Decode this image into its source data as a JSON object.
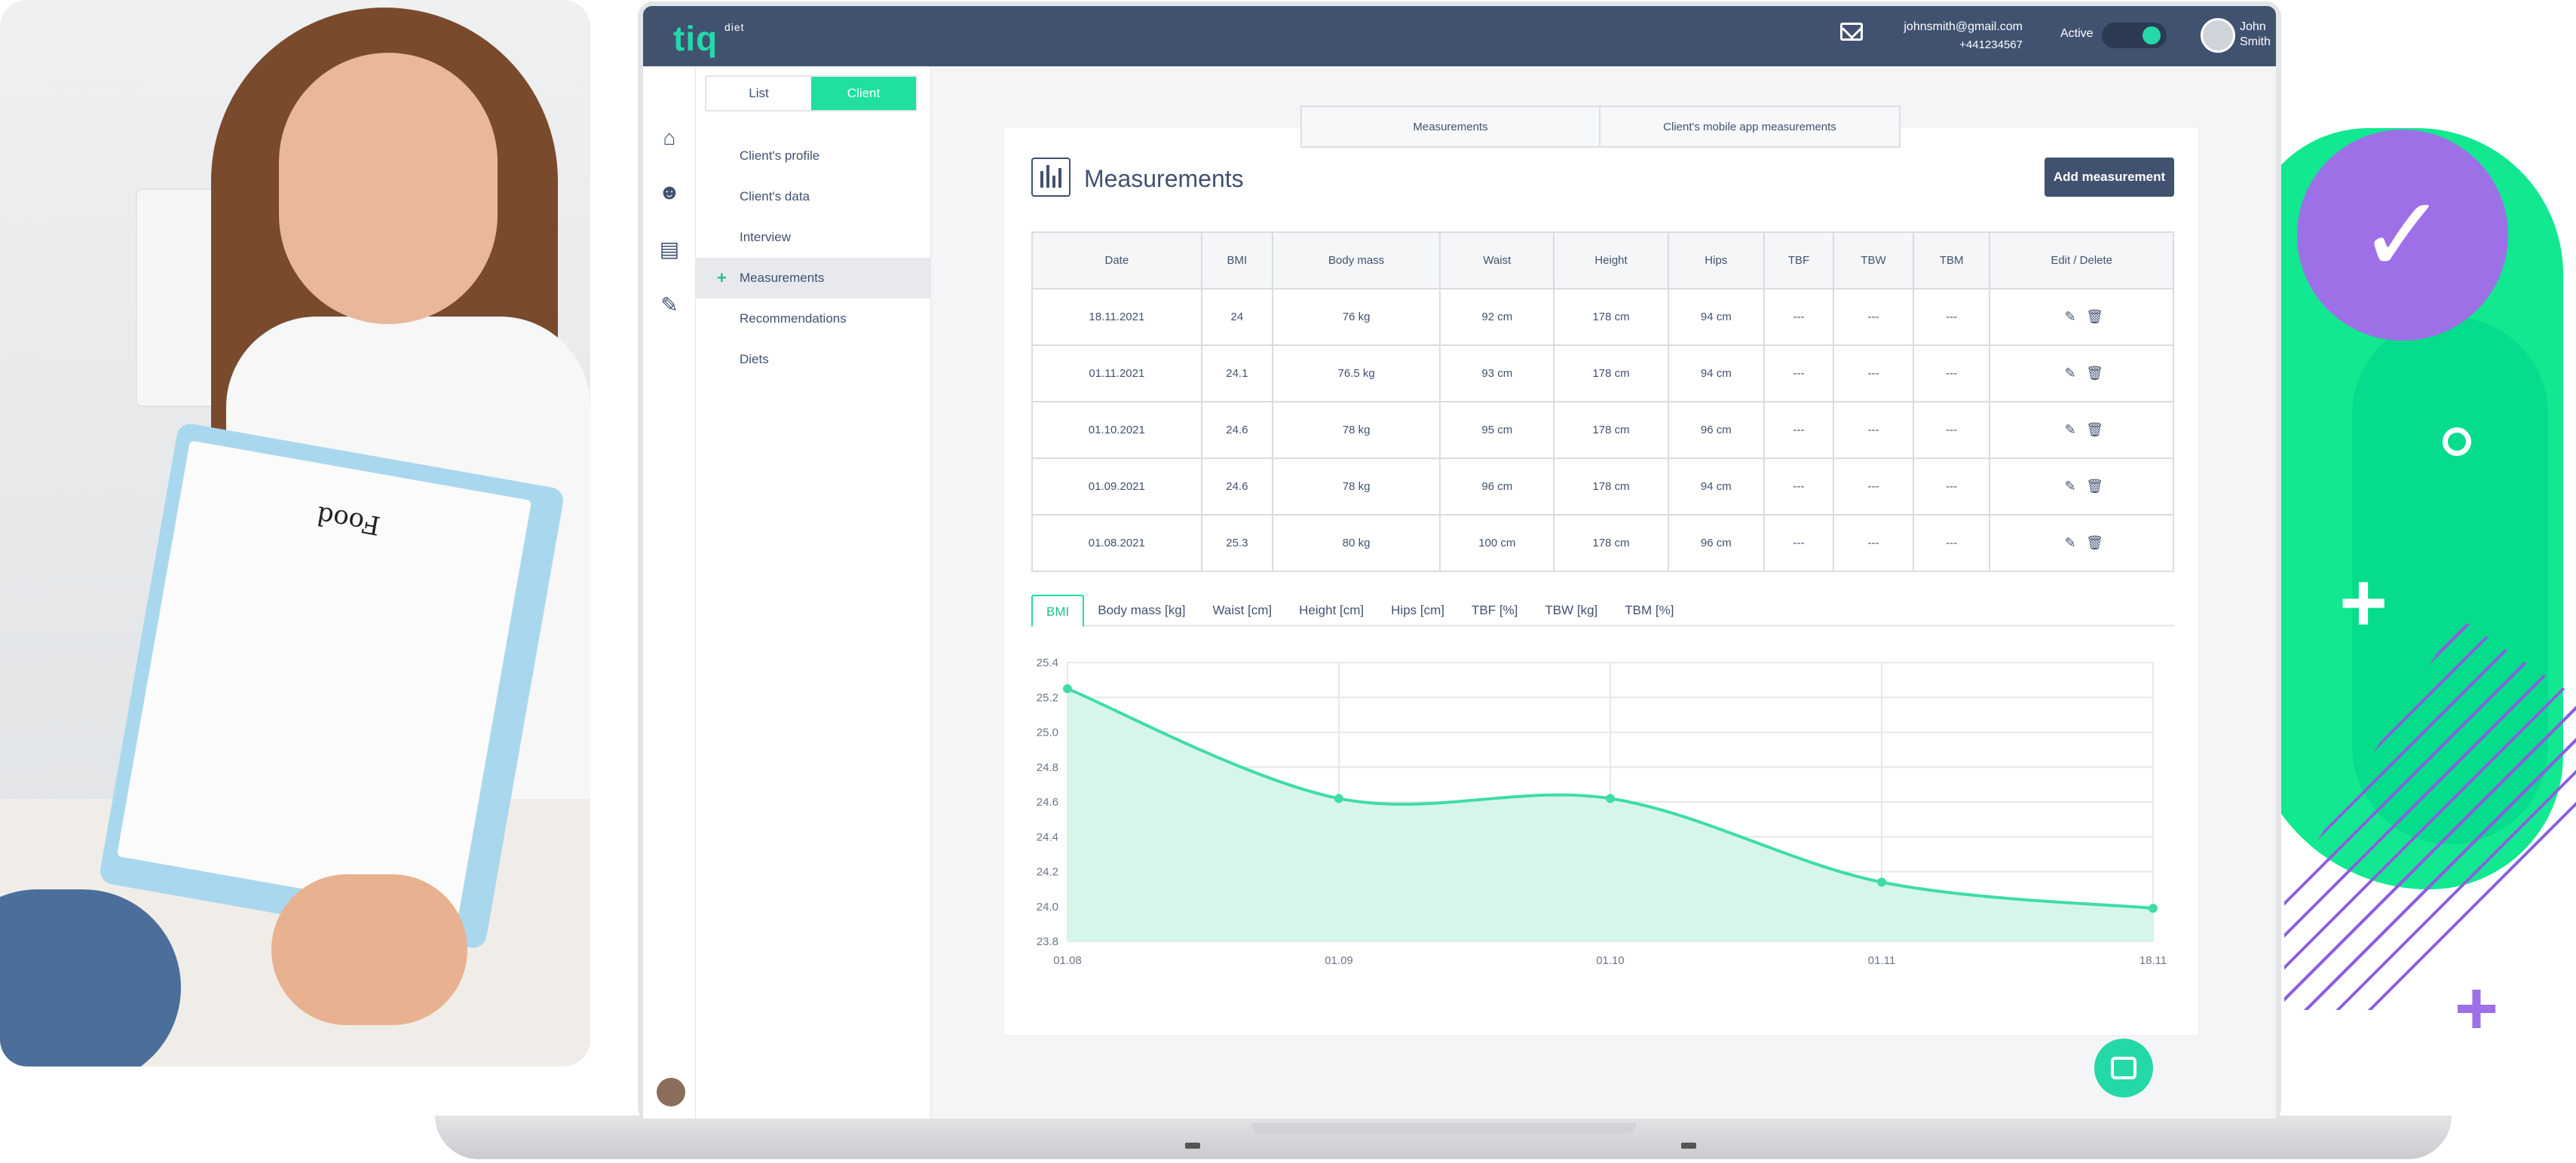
{
  "app": {
    "logo": "tiq",
    "logo_sub": "diet",
    "user_email": "johnsmith@gmail.com",
    "user_phone": "+441234567",
    "status_label": "Active",
    "user_name_first": "John",
    "user_name_last": "Smith"
  },
  "sidebar": {
    "tabs": [
      "List",
      "Client"
    ],
    "active_tab": "Client",
    "items": [
      "Client's profile",
      "Client's data",
      "Interview",
      "Measurements",
      "Recommendations",
      "Diets"
    ],
    "selected": "Measurements"
  },
  "top_tabs": [
    "Measurements",
    "Client's mobile app measurements"
  ],
  "page": {
    "title": "Measurements",
    "add_button": "Add measurement"
  },
  "table": {
    "headers": [
      "Date",
      "BMI",
      "Body mass",
      "Waist",
      "Height",
      "Hips",
      "TBF",
      "TBW",
      "TBM",
      "Edit / Delete"
    ],
    "rows": [
      [
        "18.11.2021",
        "24",
        "76 kg",
        "92 cm",
        "178 cm",
        "94 cm",
        "---",
        "---",
        "---"
      ],
      [
        "01.11.2021",
        "24.1",
        "76.5 kg",
        "93 cm",
        "178 cm",
        "94 cm",
        "---",
        "---",
        "---"
      ],
      [
        "01.10.2021",
        "24.6",
        "78 kg",
        "95 cm",
        "178 cm",
        "96 cm",
        "---",
        "---",
        "---"
      ],
      [
        "01.09.2021",
        "24.6",
        "78 kg",
        "96 cm",
        "178 cm",
        "94 cm",
        "---",
        "---",
        "---"
      ],
      [
        "01.08.2021",
        "25.3",
        "80 kg",
        "100 cm",
        "178 cm",
        "96 cm",
        "---",
        "---",
        "---"
      ]
    ]
  },
  "chart_tabs": [
    "BMI",
    "Body mass [kg]",
    "Waist [cm]",
    "Height [cm]",
    "Hips [cm]",
    "TBF [%]",
    "TBW [kg]",
    "TBM [%]"
  ],
  "chart_data": {
    "type": "area",
    "x": [
      "01.08",
      "01.09",
      "01.10",
      "01.11",
      "18.11"
    ],
    "values": [
      25.25,
      24.62,
      24.62,
      24.14,
      23.99
    ],
    "yticks": [
      23.8,
      24.0,
      24.2,
      24.4,
      24.6,
      24.8,
      25.0,
      25.2,
      25.4
    ],
    "ylim": [
      23.8,
      25.4
    ],
    "grid": true,
    "color": "#3fdcaa",
    "fill": "#d6f6ea"
  },
  "decor": {
    "photo_sign": "Food"
  }
}
